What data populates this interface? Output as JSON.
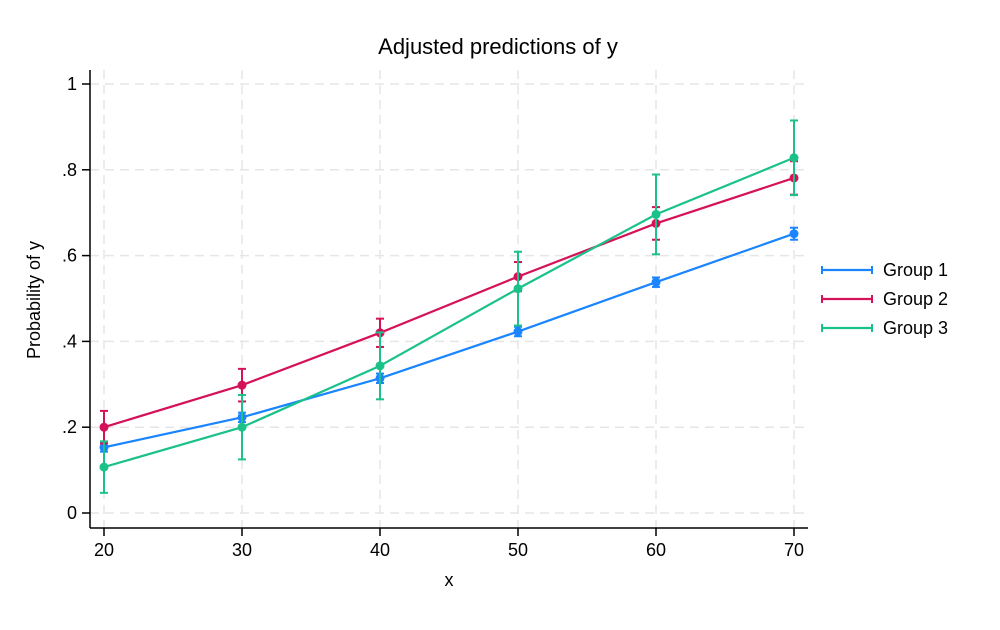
{
  "chart_data": {
    "type": "line",
    "title": "Adjusted predictions of y",
    "xlabel": "x",
    "ylabel": "Probability of y",
    "x": [
      20,
      30,
      40,
      50,
      60,
      70
    ],
    "xlim": [
      20,
      70
    ],
    "ylim": [
      0,
      1
    ],
    "xticks": [
      {
        "value": 20,
        "label": "20"
      },
      {
        "value": 30,
        "label": "30"
      },
      {
        "value": 40,
        "label": "40"
      },
      {
        "value": 50,
        "label": "50"
      },
      {
        "value": 60,
        "label": "60"
      },
      {
        "value": 70,
        "label": "70"
      }
    ],
    "yticks": [
      {
        "value": 0,
        "label": "0"
      },
      {
        "value": 0.2,
        "label": ".2"
      },
      {
        "value": 0.4,
        "label": ".4"
      },
      {
        "value": 0.6,
        "label": ".6"
      },
      {
        "value": 0.8,
        "label": ".8"
      },
      {
        "value": 1,
        "label": "1"
      }
    ],
    "grid": true,
    "legend_position": "right",
    "series": [
      {
        "name": "Group 1",
        "color": "#1a85ff",
        "values": [
          0.153,
          0.223,
          0.314,
          0.423,
          0.538,
          0.651
        ],
        "ci_lower": [
          0.143,
          0.212,
          0.303,
          0.412,
          0.527,
          0.637
        ],
        "ci_upper": [
          0.163,
          0.234,
          0.325,
          0.434,
          0.549,
          0.665
        ]
      },
      {
        "name": "Group 2",
        "color": "#d41159",
        "values": [
          0.2,
          0.298,
          0.42,
          0.551,
          0.675,
          0.781
        ],
        "ci_lower": [
          0.162,
          0.26,
          0.387,
          0.517,
          0.637,
          0.742
        ],
        "ci_upper": [
          0.238,
          0.336,
          0.453,
          0.585,
          0.713,
          0.82
        ]
      },
      {
        "name": "Group 3",
        "color": "#1ac28a",
        "values": [
          0.107,
          0.2,
          0.343,
          0.523,
          0.696,
          0.828
        ],
        "ci_lower": [
          0.047,
          0.125,
          0.265,
          0.437,
          0.603,
          0.741
        ],
        "ci_upper": [
          0.167,
          0.275,
          0.421,
          0.609,
          0.789,
          0.915
        ]
      }
    ]
  }
}
